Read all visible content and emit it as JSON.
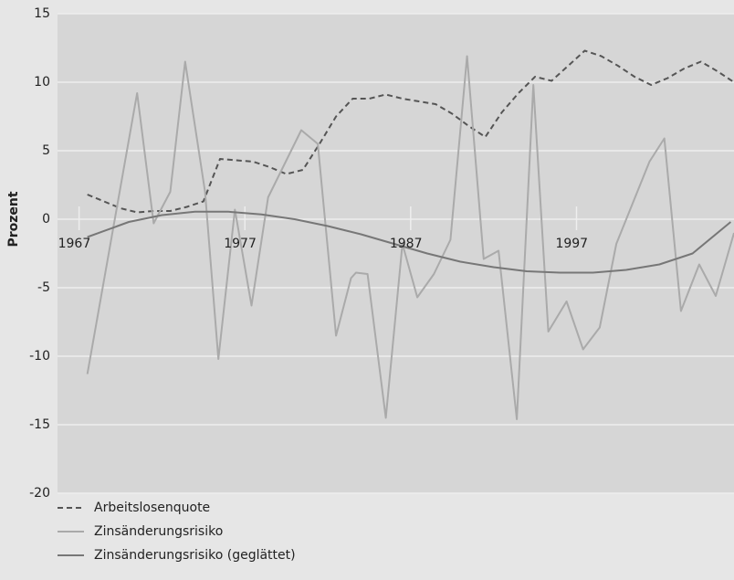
{
  "chart_data": {
    "type": "line",
    "y_label": "Prozent",
    "xlim": [
      1965.7,
      2006.5
    ],
    "xticks": [
      1967,
      1977,
      1987,
      1997
    ],
    "ylim": [
      -20,
      15
    ],
    "yticks": [
      -20,
      -15,
      -10,
      -5,
      0,
      5,
      10,
      15
    ],
    "grid": true,
    "legend": "bottom-left",
    "series": [
      {
        "name": "Arbeitslosenquote",
        "color": "#555555",
        "dash": true,
        "x": [
          1967.5,
          1968.5,
          1969.5,
          1970.5,
          1971.5,
          1972.5,
          1973.5,
          1974.5,
          1975.5,
          1976.5,
          1977.5,
          1978.5,
          1979.5,
          1980.5,
          1981.5,
          1982.5,
          1983.5,
          1984.5,
          1985.5,
          1986.5,
          1987.5,
          1988.5,
          1989.5,
          1990.5,
          1991.5,
          1992.5,
          1993.5,
          1994.5,
          1995.5,
          1996.5,
          1997.5,
          1998.5,
          1999.5,
          2000.5,
          2001.5,
          2002.5,
          2003.5,
          2004.5,
          2005.5,
          2006.5
        ],
        "values": [
          1.8,
          1.3,
          0.8,
          0.5,
          0.6,
          0.6,
          0.9,
          1.3,
          4.4,
          4.3,
          4.2,
          3.8,
          3.3,
          3.6,
          5.5,
          7.5,
          8.8,
          8.8,
          9.1,
          8.8,
          8.6,
          8.4,
          7.7,
          6.8,
          6.0,
          7.8,
          9.2,
          10.4,
          10.1,
          11.2,
          12.3,
          11.9,
          11.2,
          10.4,
          9.8,
          10.3,
          11.0,
          11.5,
          10.8,
          10.0
        ]
      },
      {
        "name": "Zinsänderungsrisiko",
        "color": "#aaaaaa",
        "dash": false,
        "x": [
          1967.5,
          1970.5,
          1971.5,
          1972.5,
          1973.4,
          1974.6,
          1975.4,
          1976.4,
          1977.4,
          1978.4,
          1980.4,
          1981.4,
          1982.5,
          1983.4,
          1983.7,
          1984.4,
          1985.5,
          1986.5,
          1987.4,
          1988.4,
          1989.4,
          1990.4,
          1991.4,
          1992.3,
          1993.4,
          1994.4,
          1995.3,
          1996.4,
          1997.4,
          1998.4,
          1999.4,
          2001.4,
          2002.3,
          2003.3,
          2004.4,
          2005.4,
          2006.5
        ],
        "values": [
          -11.3,
          9.2,
          -0.3,
          2,
          11.5,
          2,
          -10.2,
          0.7,
          -6.3,
          1.6,
          6.5,
          5.5,
          -8.5,
          -4.3,
          -3.9,
          -4,
          -14.5,
          -1.8,
          -5.7,
          -4,
          -1.5,
          11.9,
          -2.9,
          -2.3,
          -14.6,
          9.8,
          -8.2,
          -6,
          -9.5,
          -7.9,
          -1.8,
          4.2,
          5.9,
          -6.7,
          -3.3,
          -5.6,
          -1
        ]
      },
      {
        "name": "Zinsänderungsrisiko (geglättet)",
        "color": "#777777",
        "dash": false,
        "x": [
          1967.5,
          1970,
          1972,
          1974,
          1976,
          1978,
          1980,
          1982,
          1984,
          1986,
          1988,
          1990,
          1992,
          1994,
          1996,
          1998,
          2000,
          2002,
          2004,
          2006.3
        ],
        "values": [
          -1.3,
          -0.2,
          0.3,
          0.55,
          0.55,
          0.35,
          0,
          -0.5,
          -1.1,
          -1.8,
          -2.5,
          -3.1,
          -3.5,
          -3.8,
          -3.9,
          -3.9,
          -3.7,
          -3.3,
          -2.5,
          -0.2
        ]
      }
    ]
  }
}
